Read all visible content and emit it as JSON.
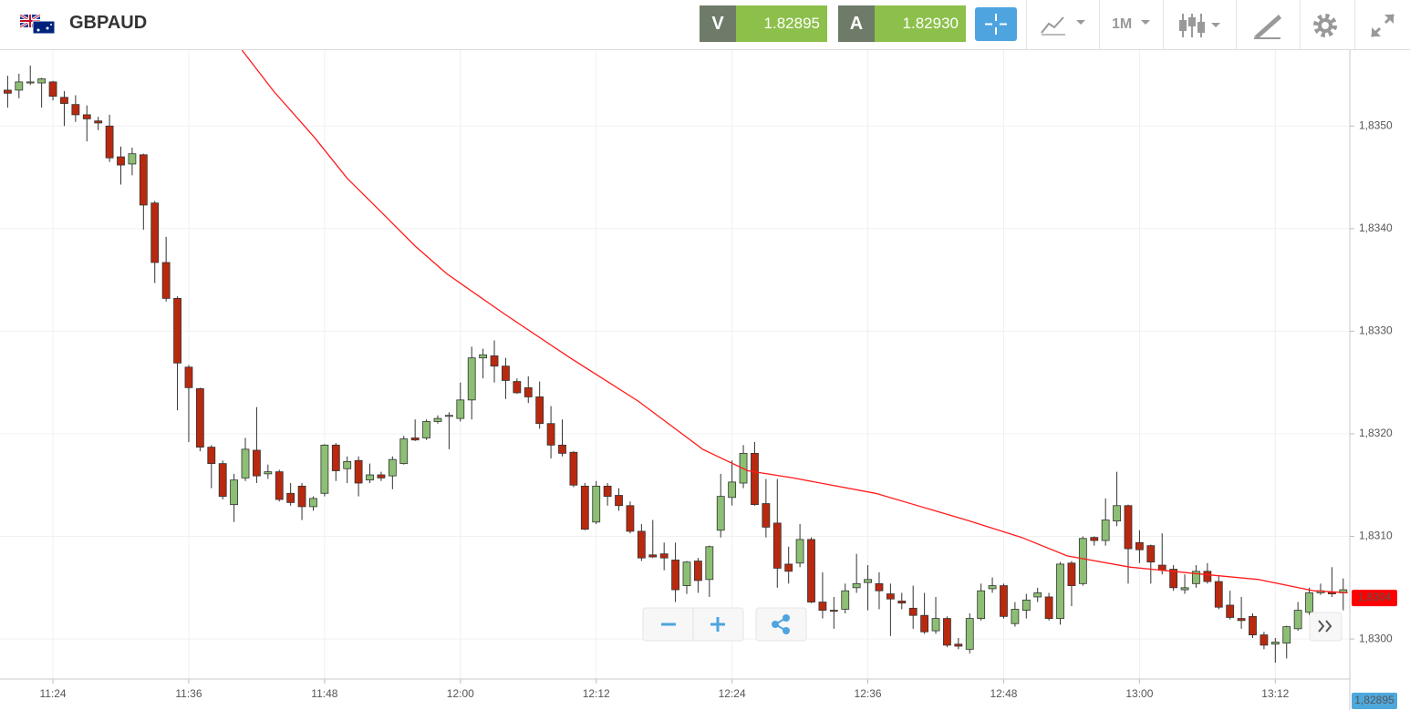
{
  "toolbar": {
    "symbol": "GBPAUD",
    "sell_label": "V",
    "sell_price": "1.82895",
    "buy_label": "A",
    "buy_price": "1.82930",
    "timeframe": "1M"
  },
  "chart_data": {
    "type": "candlestick",
    "categories": [
      null,
      null,
      null,
      null,
      "11:24",
      null,
      null,
      null,
      null,
      null,
      null,
      null,
      null,
      null,
      null,
      null,
      "11:36",
      null,
      null,
      null,
      null,
      null,
      null,
      null,
      null,
      null,
      null,
      null,
      "11:48",
      null,
      null,
      null,
      null,
      null,
      null,
      null,
      null,
      null,
      null,
      null,
      "12:00",
      null,
      null,
      null,
      null,
      null,
      null,
      null,
      null,
      null,
      null,
      null,
      "12:12",
      null,
      null,
      null,
      null,
      null,
      null,
      null,
      null,
      null,
      null,
      null,
      "12:24",
      null,
      null,
      null,
      null,
      null,
      null,
      null,
      null,
      null,
      null,
      null,
      "12:36",
      null,
      null,
      null,
      null,
      null,
      null,
      null,
      null,
      null,
      null,
      null,
      "12:48",
      null,
      null,
      null,
      null,
      null,
      null,
      null,
      null,
      null,
      null,
      null,
      "13:00",
      null,
      null,
      null,
      null,
      null,
      null,
      null,
      null,
      null,
      null,
      null,
      "13:12",
      null,
      null,
      null,
      null,
      null,
      null
    ],
    "open": [
      1.83535,
      1.83535,
      1.83542,
      1.83542,
      1.83543,
      1.83528,
      1.83521,
      1.83511,
      1.83505,
      1.835,
      1.8347,
      1.83463,
      1.83472,
      1.83425,
      1.83367,
      1.83332,
      1.83265,
      1.83244,
      1.83187,
      1.83171,
      1.83131,
      1.83157,
      1.83184,
      1.83161,
      1.83163,
      1.83142,
      1.83149,
      1.83129,
      1.83142,
      1.83189,
      1.83166,
      1.83174,
      1.83155,
      1.8316,
      1.83159,
      1.83171,
      1.83196,
      1.83196,
      1.83212,
      1.83217,
      1.83215,
      1.83233,
      1.83274,
      1.83276,
      1.83266,
      1.83251,
      1.83245,
      1.83236,
      1.8321,
      1.83189,
      1.83182,
      1.83149,
      1.83114,
      1.83149,
      1.8314,
      1.8313,
      1.83105,
      1.83082,
      1.83083,
      1.83077,
      1.83052,
      1.83076,
      1.83058,
      1.83106,
      1.83138,
      1.83152,
      1.83181,
      1.83132,
      1.83113,
      1.83073,
      1.83074,
      1.83097,
      1.83036,
      1.83028,
      1.83029,
      1.8305,
      1.83055,
      1.83054,
      1.83044,
      1.83037,
      1.8303,
      1.83023,
      1.83008,
      1.8302,
      1.82995,
      1.8299,
      1.8302,
      1.83049,
      1.83052,
      1.83015,
      1.83028,
      1.83041,
      1.83041,
      1.8302,
      1.83074,
      1.83054,
      1.83099,
      1.83096,
      1.83115,
      1.8313,
      1.83094,
      1.83091,
      1.83072,
      1.83068,
      1.83048,
      1.83054,
      1.83066,
      1.83056,
      1.83033,
      1.8302,
      1.83022,
      1.83004,
      1.82995,
      1.82996,
      1.8301,
      1.83026,
      1.83045,
      1.83046,
      1.83045
    ],
    "high": [
      1.83549,
      1.83551,
      1.83559,
      1.83547,
      1.83544,
      1.83534,
      1.8353,
      1.8352,
      1.83509,
      1.83511,
      1.8348,
      1.83479,
      1.83473,
      1.83427,
      1.83392,
      1.83334,
      1.83267,
      1.83245,
      1.83189,
      1.83174,
      1.83161,
      1.83196,
      1.83226,
      1.8317,
      1.83165,
      1.83152,
      1.83152,
      1.83139,
      1.8319,
      1.83191,
      1.83178,
      1.83178,
      1.83171,
      1.83163,
      1.83178,
      1.83198,
      1.83214,
      1.83214,
      1.83218,
      1.83221,
      1.8325,
      1.83285,
      1.83283,
      1.83291,
      1.83274,
      1.83254,
      1.83256,
      1.83251,
      1.83227,
      1.83214,
      1.83183,
      1.83152,
      1.83154,
      1.83152,
      1.83147,
      1.83134,
      1.83112,
      1.83116,
      1.83094,
      1.83094,
      1.83076,
      1.83079,
      1.83091,
      1.83161,
      1.83174,
      1.83189,
      1.83192,
      1.83156,
      1.83156,
      1.8309,
      1.83112,
      1.83099,
      1.83065,
      1.83041,
      1.83054,
      1.83083,
      1.83072,
      1.83065,
      1.83054,
      1.83045,
      1.83052,
      1.83045,
      1.83041,
      1.83022,
      1.83001,
      1.83025,
      1.83054,
      1.8306,
      1.83054,
      1.83036,
      1.83044,
      1.8305,
      1.83045,
      1.83075,
      1.83076,
      1.831,
      1.831,
      1.83137,
      1.83163,
      1.83131,
      1.83106,
      1.83092,
      1.83103,
      1.83072,
      1.83063,
      1.83072,
      1.83074,
      1.83061,
      1.83047,
      1.83041,
      1.83025,
      1.83007,
      1.83001,
      1.83013,
      1.83036,
      1.8305,
      1.83054,
      1.8307,
      1.83059
    ],
    "low": [
      1.83518,
      1.83527,
      1.8354,
      1.83518,
      1.83525,
      1.835,
      1.83504,
      1.83485,
      1.83496,
      1.83465,
      1.83443,
      1.83452,
      1.83399,
      1.83347,
      1.83329,
      1.83223,
      1.83192,
      1.83183,
      1.83147,
      1.83136,
      1.83114,
      1.83154,
      1.83152,
      1.83156,
      1.83134,
      1.8313,
      1.83116,
      1.83125,
      1.83139,
      1.83154,
      1.83152,
      1.83139,
      1.83152,
      1.83154,
      1.83146,
      1.8317,
      1.83193,
      1.83194,
      1.8321,
      1.83185,
      1.83212,
      1.83214,
      1.83254,
      1.8325,
      1.83234,
      1.83239,
      1.8323,
      1.83205,
      1.83176,
      1.83178,
      1.83148,
      1.83106,
      1.83112,
      1.8313,
      1.83125,
      1.83103,
      1.83076,
      1.83079,
      1.83067,
      1.83036,
      1.83044,
      1.83045,
      1.83041,
      1.83099,
      1.8313,
      1.83147,
      1.8313,
      1.83099,
      1.8305,
      1.83054,
      1.8307,
      1.83035,
      1.8302,
      1.8301,
      1.83025,
      1.83045,
      1.83028,
      1.83029,
      1.83003,
      1.83029,
      1.8301,
      1.83005,
      1.83005,
      1.82992,
      1.8299,
      1.82986,
      1.83018,
      1.83045,
      1.8302,
      1.83012,
      1.8302,
      1.83036,
      1.83018,
      1.83014,
      1.83032,
      1.83052,
      1.83091,
      1.83091,
      1.8311,
      1.83054,
      1.83074,
      1.83054,
      1.83063,
      1.83047,
      1.83044,
      1.8305,
      1.83054,
      1.83029,
      1.83019,
      1.8301,
      1.83001,
      1.8299,
      1.82977,
      1.82981,
      1.83008,
      1.83023,
      1.83043,
      1.83041,
      1.83028
    ],
    "close": [
      1.83532,
      1.83543,
      1.83543,
      1.83546,
      1.83529,
      1.83522,
      1.83511,
      1.83507,
      1.83503,
      1.83469,
      1.83462,
      1.83473,
      1.83423,
      1.83367,
      1.83332,
      1.83269,
      1.83245,
      1.83187,
      1.83171,
      1.83139,
      1.83155,
      1.83185,
      1.83159,
      1.83163,
      1.83136,
      1.83133,
      1.83129,
      1.83137,
      1.83189,
      1.83164,
      1.83173,
      1.83152,
      1.8316,
      1.83157,
      1.83175,
      1.83195,
      1.83194,
      1.83212,
      1.83215,
      1.83218,
      1.83233,
      1.83274,
      1.83277,
      1.83266,
      1.83252,
      1.8324,
      1.83236,
      1.8321,
      1.83189,
      1.83181,
      1.8315,
      1.83107,
      1.83149,
      1.83139,
      1.8313,
      1.83105,
      1.83079,
      1.8308,
      1.83079,
      1.83048,
      1.83075,
      1.83057,
      1.8309,
      1.83139,
      1.83153,
      1.83181,
      1.83131,
      1.83109,
      1.83069,
      1.83066,
      1.83097,
      1.83036,
      1.83028,
      1.83027,
      1.83047,
      1.83054,
      1.83058,
      1.83047,
      1.83039,
      1.83035,
      1.83023,
      1.83007,
      1.8302,
      1.82994,
      1.82993,
      1.8302,
      1.83047,
      1.83052,
      1.83022,
      1.83029,
      1.83038,
      1.83045,
      1.8302,
      1.83073,
      1.83052,
      1.83098,
      1.83096,
      1.83116,
      1.8313,
      1.83088,
      1.83087,
      1.83075,
      1.83067,
      1.8305,
      1.8305,
      1.83066,
      1.83056,
      1.83031,
      1.83021,
      1.83018,
      1.83004,
      1.82994,
      1.82997,
      1.83012,
      1.83028,
      1.83045,
      1.83047,
      1.83044,
      1.83048
    ],
    "up_color": "#8cbf73",
    "down_color": "#b8290f",
    "moving_average": {
      "color": "#ff1a1a",
      "x": [
        20.7,
        23.5,
        27.1,
        30.0,
        33.2,
        36.0,
        38.8,
        44.0,
        49.7,
        55.7,
        61.4,
        65.4,
        69.4,
        76.7,
        84.7,
        89.6,
        93.6,
        99.2,
        105.7,
        110.5,
        115.4,
        118.4
      ],
      "values": [
        1.83574,
        1.83534,
        1.83489,
        1.83449,
        1.83414,
        1.83383,
        1.83356,
        1.83316,
        1.83274,
        1.83232,
        1.83185,
        1.83164,
        1.83157,
        1.83142,
        1.83116,
        1.83099,
        1.83081,
        1.8307,
        1.83063,
        1.83058,
        1.83047,
        1.83045
      ]
    },
    "ylim": [
      1.82961,
      1.83574
    ],
    "yticks": [
      {
        "value": 1.83,
        "label": "1,8300"
      },
      {
        "value": 1.831,
        "label": "1,8310"
      },
      {
        "value": 1.832,
        "label": "1,8320"
      },
      {
        "value": 1.833,
        "label": "1,8330"
      },
      {
        "value": 1.834,
        "label": "1,8340"
      },
      {
        "value": 1.835,
        "label": "1,8350"
      }
    ],
    "grid": true,
    "price_tags": [
      {
        "value": 1.8304,
        "label": "1,8304",
        "color": "#ff0000"
      },
      {
        "value": 1.82895,
        "label": "1,82895",
        "color": "#4ea8dc"
      }
    ]
  }
}
